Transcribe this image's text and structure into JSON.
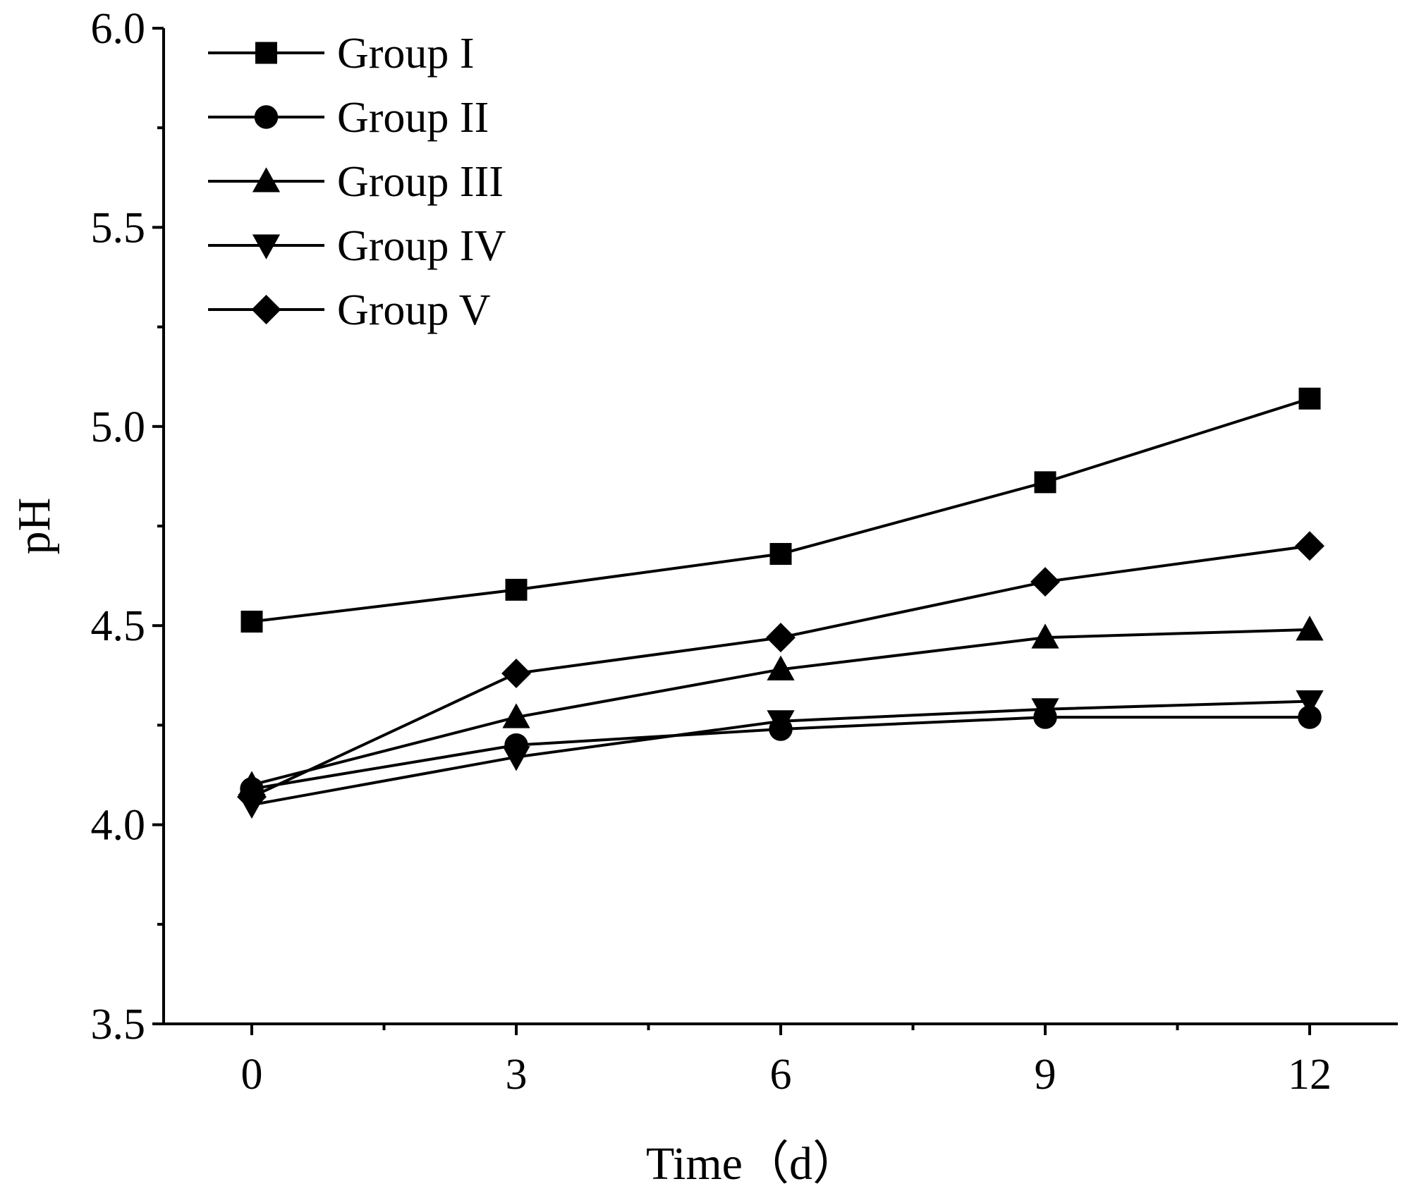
{
  "chart_data": {
    "type": "line",
    "title": "",
    "xlabel": "Time（d）",
    "ylabel": "pH",
    "x": [
      0,
      3,
      6,
      9,
      12
    ],
    "xticks": [
      "0",
      "3",
      "6",
      "9",
      "12"
    ],
    "xlim": [
      -1,
      13
    ],
    "ylim": [
      3.5,
      6.0
    ],
    "yticks": [
      "3.5",
      "4.0",
      "4.5",
      "5.0",
      "5.5",
      "6.0"
    ],
    "legend_position": "top-left",
    "grid": false,
    "series": [
      {
        "name": "Group I",
        "marker": "square",
        "values": [
          4.51,
          4.59,
          4.68,
          4.86,
          5.07
        ]
      },
      {
        "name": "Group II",
        "marker": "circle",
        "values": [
          4.09,
          4.2,
          4.24,
          4.27,
          4.27
        ]
      },
      {
        "name": "Group III",
        "marker": "triangle-up",
        "values": [
          4.1,
          4.27,
          4.39,
          4.47,
          4.49
        ]
      },
      {
        "name": "Group IV",
        "marker": "triangle-down",
        "values": [
          4.05,
          4.17,
          4.26,
          4.29,
          4.31
        ]
      },
      {
        "name": "Group V",
        "marker": "diamond",
        "values": [
          4.07,
          4.38,
          4.47,
          4.61,
          4.7
        ]
      }
    ]
  },
  "colors": {
    "line": "#000000",
    "marker": "#000000",
    "background": "#ffffff"
  }
}
